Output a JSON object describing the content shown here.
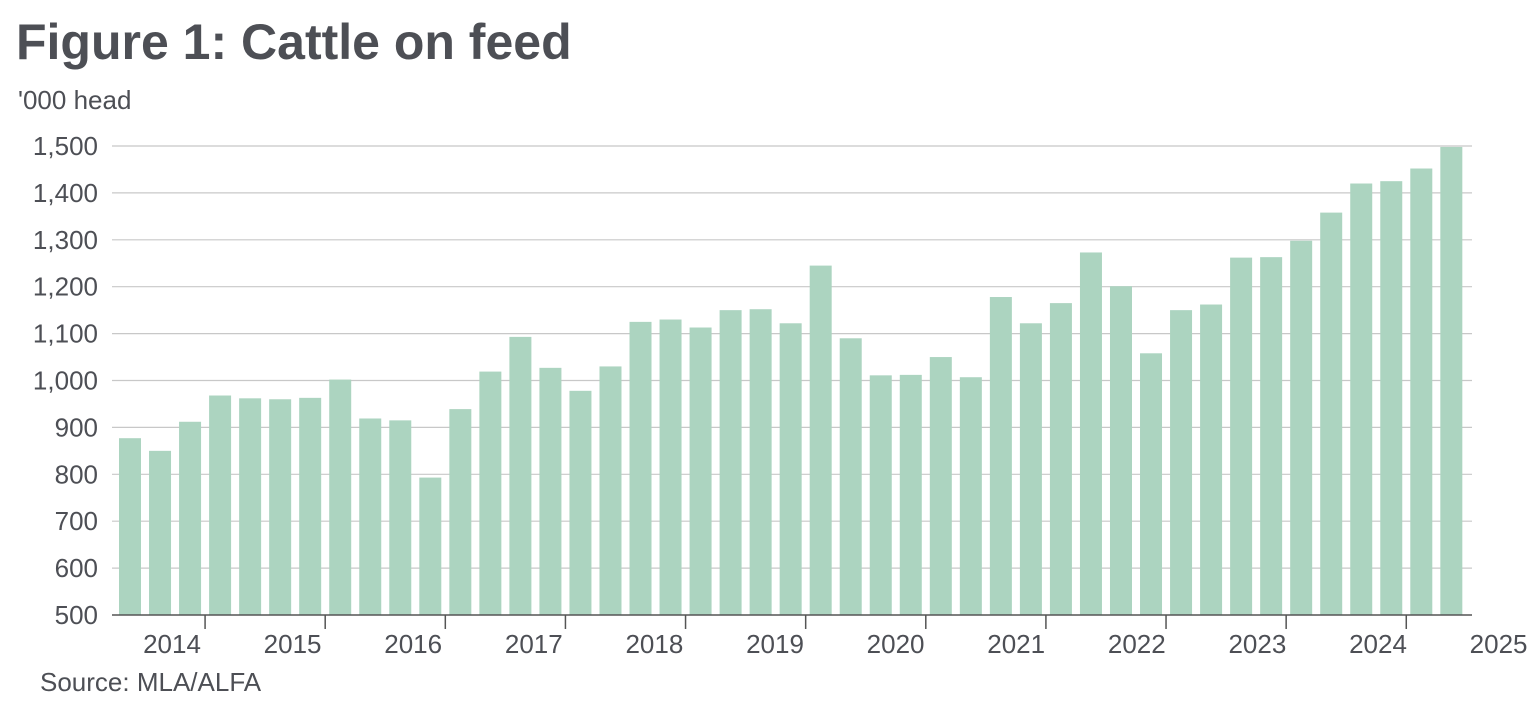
{
  "title": "Figure 1: Cattle on feed",
  "source": "Source: MLA/ALFA",
  "colors": {
    "bar": "#acd4c0",
    "grid": "#c8c8c8",
    "axis": "#555555",
    "text": "#4d4f55"
  },
  "chart_data": {
    "type": "bar",
    "ylabel": "'000 head",
    "ylim": [
      500,
      1500
    ],
    "yticks": [
      500,
      600,
      700,
      800,
      900,
      1000,
      1100,
      1200,
      1300,
      1400,
      1500
    ],
    "grid": true,
    "year_labels": [
      "2014",
      "2015",
      "2016",
      "2017",
      "2018",
      "2019",
      "2020",
      "2021",
      "2022",
      "2023",
      "2024",
      "2025"
    ],
    "first_year": 2014,
    "periods_per_year": 4,
    "first_quarter": 2,
    "values": [
      877,
      850,
      912,
      968,
      962,
      960,
      963,
      1002,
      919,
      915,
      793,
      939,
      1019,
      1093,
      1027,
      978,
      1030,
      1125,
      1130,
      1113,
      1150,
      1152,
      1122,
      1245,
      1090,
      1011,
      1012,
      1050,
      1007,
      1178,
      1122,
      1165,
      1273,
      1201,
      1058,
      1150,
      1162,
      1262,
      1263,
      1298,
      1358,
      1420,
      1425,
      1452,
      1498
    ]
  }
}
